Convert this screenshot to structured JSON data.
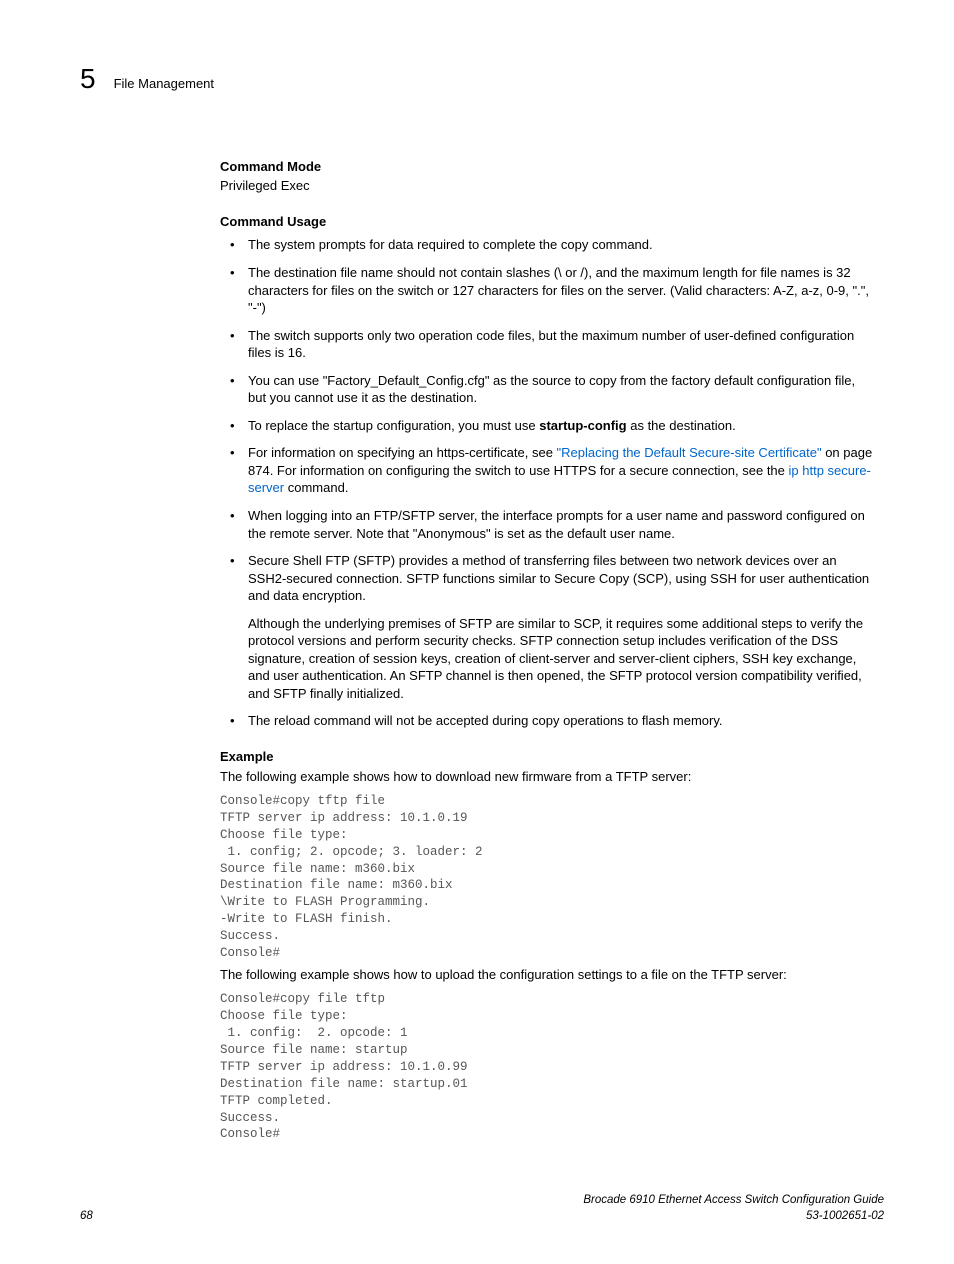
{
  "header": {
    "chapter_number": "5",
    "chapter_title": "File Management"
  },
  "sections": {
    "command_mode": {
      "heading": "Command Mode",
      "text": "Privileged Exec"
    },
    "command_usage": {
      "heading": "Command Usage",
      "bullets": {
        "b1": "The system prompts for data required to complete the copy command.",
        "b2": "The destination file name should not contain slashes (\\ or /), and the maximum length for file names is 32 characters for files on the switch or 127 characters for files on the server. (Valid characters: A-Z, a-z, 0-9, \".\", \"-\")",
        "b3": "The switch supports only two operation code files, but the maximum number of user-defined configuration files is 16.",
        "b4": "You can use \"Factory_Default_Config.cfg\" as the source to copy from the factory default configuration file, but you cannot use it as the destination.",
        "b5_pre": "To replace the startup configuration, you must use ",
        "b5_bold": "startup-config",
        "b5_post": " as the destination.",
        "b6_pre": "For information on specifying an https-certificate, see ",
        "b6_link1": "\"Replacing the Default Secure-site Certificate\"",
        "b6_mid": " on page 874. For information on configuring the switch to use HTTPS for a secure connection, see the ",
        "b6_link2": "ip http secure-server",
        "b6_post": " command.",
        "b7": "When logging into an FTP/SFTP server, the interface prompts for a user name and password configured on the remote server. Note that \"Anonymous\" is set as the default user name.",
        "b8": "Secure Shell FTP (SFTP) provides a method of transferring files between two network devices over an SSH2-secured connection. SFTP functions similar to Secure Copy (SCP), using SSH for user authentication and data encryption.",
        "b8_sub": "Although the underlying premises of SFTP are similar to SCP, it requires some additional steps to verify the protocol versions and perform security checks. SFTP connection setup includes verification of the DSS signature, creation of session keys, creation of client-server and server-client ciphers, SSH key exchange, and user authentication. An SFTP channel is then opened, the SFTP protocol version compatibility verified, and SFTP finally initialized.",
        "b9": "The reload command will not be accepted during copy operations to flash memory."
      }
    },
    "example": {
      "heading": "Example",
      "lead1": "The following example shows how to download new firmware from a TFTP server:",
      "code1": "Console#copy tftp file\nTFTP server ip address: 10.1.0.19\nChoose file type:\n 1. config; 2. opcode; 3. loader: 2\nSource file name: m360.bix\nDestination file name: m360.bix\n\\Write to FLASH Programming.\n-Write to FLASH finish.\nSuccess.\nConsole#",
      "lead2": "The following example shows how to upload the configuration settings to a file on the TFTP server:",
      "code2": "Console#copy file tftp\nChoose file type:\n 1. config:  2. opcode: 1\nSource file name: startup\nTFTP server ip address: 10.1.0.99\nDestination file name: startup.01\nTFTP completed.\nSuccess.\nConsole#"
    }
  },
  "footer": {
    "page": "68",
    "doc_title": "Brocade 6910 Ethernet Access Switch Configuration Guide",
    "doc_number": "53-1002651-02"
  }
}
